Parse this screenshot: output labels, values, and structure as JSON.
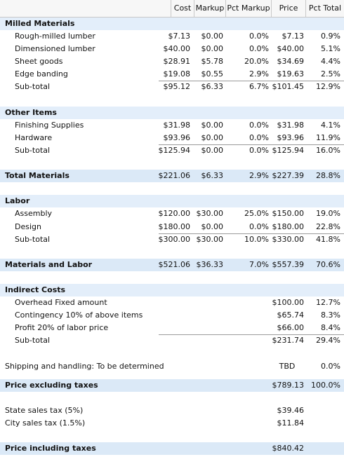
{
  "columns": [
    "Cost",
    "Markup",
    "Pct Markup",
    "Price",
    "Pct Total"
  ],
  "milled": {
    "title": "Milled Materials",
    "rows": [
      {
        "label": "Rough-milled lumber",
        "cost": "$7.13",
        "markup": "$0.00",
        "pct_markup": "0.0%",
        "price": "$7.13",
        "pct_total": "0.9%"
      },
      {
        "label": "Dimensioned lumber",
        "cost": "$40.00",
        "markup": "$0.00",
        "pct_markup": "0.0%",
        "price": "$40.00",
        "pct_total": "5.1%"
      },
      {
        "label": "Sheet goods",
        "cost": "$28.91",
        "markup": "$5.78",
        "pct_markup": "20.0%",
        "price": "$34.69",
        "pct_total": "4.4%"
      },
      {
        "label": "Edge banding",
        "cost": "$19.08",
        "markup": "$0.55",
        "pct_markup": "2.9%",
        "price": "$19.63",
        "pct_total": "2.5%"
      }
    ],
    "subtotal": {
      "label": "Sub-total",
      "cost": "$95.12",
      "markup": "$6.33",
      "pct_markup": "6.7%",
      "price": "$101.45",
      "pct_total": "12.9%"
    }
  },
  "other": {
    "title": "Other Items",
    "rows": [
      {
        "label": "Finishing Supplies",
        "cost": "$31.98",
        "markup": "$0.00",
        "pct_markup": "0.0%",
        "price": "$31.98",
        "pct_total": "4.1%"
      },
      {
        "label": "Hardware",
        "cost": "$93.96",
        "markup": "$0.00",
        "pct_markup": "0.0%",
        "price": "$93.96",
        "pct_total": "11.9%"
      }
    ],
    "subtotal": {
      "label": "Sub-total",
      "cost": "$125.94",
      "markup": "$0.00",
      "pct_markup": "0.0%",
      "price": "$125.94",
      "pct_total": "16.0%"
    }
  },
  "total_materials": {
    "label": "Total Materials",
    "cost": "$221.06",
    "markup": "$6.33",
    "pct_markup": "2.9%",
    "price": "$227.39",
    "pct_total": "28.8%"
  },
  "labor": {
    "title": "Labor",
    "rows": [
      {
        "label": "Assembly",
        "cost": "$120.00",
        "markup": "$30.00",
        "pct_markup": "25.0%",
        "price": "$150.00",
        "pct_total": "19.0%"
      },
      {
        "label": "Design",
        "cost": "$180.00",
        "markup": "$0.00",
        "pct_markup": "0.0%",
        "price": "$180.00",
        "pct_total": "22.8%"
      }
    ],
    "subtotal": {
      "label": "Sub-total",
      "cost": "$300.00",
      "markup": "$30.00",
      "pct_markup": "10.0%",
      "price": "$330.00",
      "pct_total": "41.8%"
    }
  },
  "materials_labor": {
    "label": "Materials and Labor",
    "cost": "$521.06",
    "markup": "$36.33",
    "pct_markup": "7.0%",
    "price": "$557.39",
    "pct_total": "70.6%"
  },
  "indirect": {
    "title": "Indirect Costs",
    "rows": [
      {
        "label": "Overhead Fixed amount",
        "price": "$100.00",
        "pct_total": "12.7%"
      },
      {
        "label": "Contingency 10% of above items",
        "price": "$65.74",
        "pct_total": "8.3%"
      },
      {
        "label": "Profit 20% of labor price",
        "price": "$66.00",
        "pct_total": "8.4%"
      }
    ],
    "subtotal": {
      "label": "Sub-total",
      "price": "$231.74",
      "pct_total": "29.4%"
    }
  },
  "shipping": {
    "label": "Shipping and handling: To be determined",
    "price": "TBD",
    "pct_total": "0.0%"
  },
  "price_ex_tax": {
    "label": "Price excluding taxes",
    "price": "$789.13",
    "pct_total": "100.0%"
  },
  "state_tax": {
    "label": "State sales tax (5%)",
    "price": "$39.46"
  },
  "city_tax": {
    "label": "City sales tax (1.5%)",
    "price": "$11.84"
  },
  "price_inc_tax": {
    "label": "Price including taxes",
    "price": "$840.42"
  }
}
